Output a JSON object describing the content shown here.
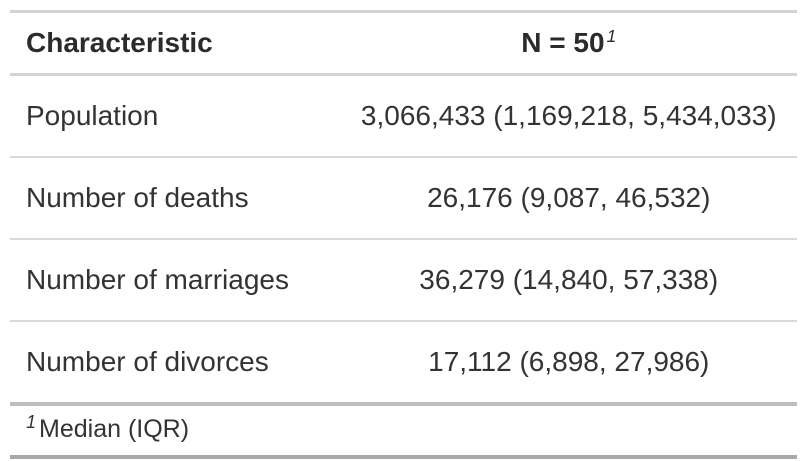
{
  "chart_data": {
    "type": "table",
    "columns": [
      "Characteristic",
      "N = 50"
    ],
    "column_footnote_marks": [
      "",
      "1"
    ],
    "rows": [
      {
        "characteristic": "Population",
        "stat": "3,066,433 (1,169,218, 5,434,033)"
      },
      {
        "characteristic": "Number of deaths",
        "stat": "26,176 (9,087, 46,532)"
      },
      {
        "characteristic": "Number of marriages",
        "stat": "36,279 (14,840, 57,338)"
      },
      {
        "characteristic": "Number of divorces",
        "stat": "17,112 (6,898, 27,986)"
      }
    ],
    "footnote": {
      "mark": "1",
      "text": "Median (IQR)"
    },
    "layout_hints": {
      "value_column_alignment": "center",
      "label_column_alignment": "left"
    }
  },
  "colors": {
    "background": "#FFFFFF",
    "body_text": "#333333",
    "header_text": "#2B2B2B",
    "border_top": "#D3D3D3",
    "border_header_bottom": "#D3D3D3",
    "border_row_separator": "#D9D9D9",
    "border_body_bottom": "#BEBEBE",
    "border_table_bottom": "#A8A8A8"
  }
}
